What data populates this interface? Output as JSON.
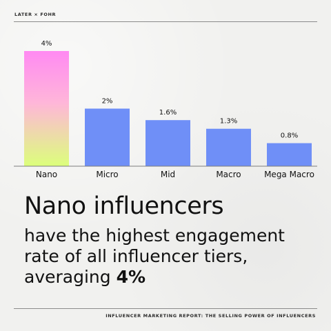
{
  "header": {
    "brand": "LATER × FOHR"
  },
  "chart_data": {
    "type": "bar",
    "categories": [
      "Nano",
      "Micro",
      "Mid",
      "Macro",
      "Mega Macro"
    ],
    "values": [
      4,
      2,
      1.6,
      1.3,
      0.8
    ],
    "labels": [
      "4%",
      "2%",
      "1.6%",
      "1.3%",
      "0.8%"
    ],
    "title": "",
    "xlabel": "",
    "ylabel": "",
    "ylim": [
      0,
      4
    ],
    "grid": false,
    "legend": "none",
    "colors": {
      "bar": "#6f8ff7",
      "highlight_top": "#ff8af2",
      "highlight_bottom": "#dcff7a"
    }
  },
  "headline": {
    "title": "Nano influencers",
    "line1": "have the highest engagement",
    "line2": "rate of all influencer tiers,",
    "line3_prefix": "averaging ",
    "line3_highlight": "4%"
  },
  "footer": {
    "text": "INFLUENCER MARKETING REPORT: THE SELLING POWER OF INFLUENCERS"
  }
}
